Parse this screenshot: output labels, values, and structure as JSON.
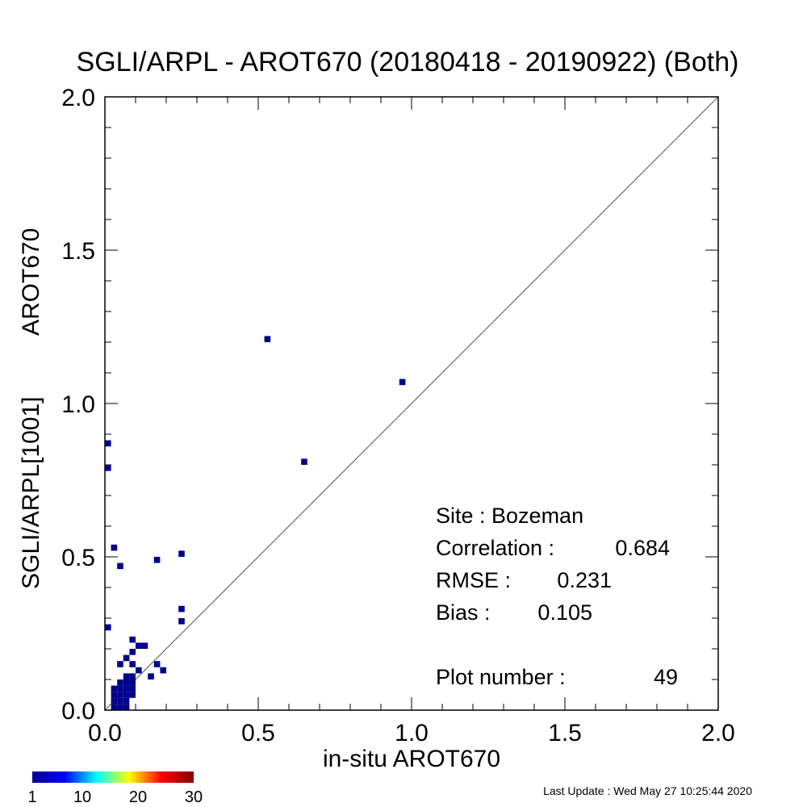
{
  "chart_data": {
    "type": "heatmap",
    "title": "SGLI/ARPL - AROT670 (20180418 - 20190922) (Both)",
    "xlabel": "in-situ AROT670",
    "ylabel_product": "SGLI/ARPL[1001]",
    "ylabel_param": "AROT670",
    "xlim": [
      0.0,
      2.0
    ],
    "ylim": [
      0.0,
      2.0
    ],
    "x_ticks": [
      "0.0",
      "0.5",
      "1.0",
      "1.5",
      "2.0"
    ],
    "y_ticks": [
      "0.0",
      "0.5",
      "1.0",
      "1.5",
      "2.0"
    ],
    "reference_line": "1:1",
    "bin_size": 0.02,
    "point_color": "#00008b",
    "points": [
      {
        "x": 0.52,
        "y": 1.2
      },
      {
        "x": 0.96,
        "y": 1.06
      },
      {
        "x": 0.64,
        "y": 0.8
      },
      {
        "x": 0.0,
        "y": 0.86
      },
      {
        "x": 0.0,
        "y": 0.78
      },
      {
        "x": 0.02,
        "y": 0.52
      },
      {
        "x": 0.04,
        "y": 0.46
      },
      {
        "x": 0.16,
        "y": 0.48
      },
      {
        "x": 0.24,
        "y": 0.5
      },
      {
        "x": 0.24,
        "y": 0.32
      },
      {
        "x": 0.24,
        "y": 0.28
      },
      {
        "x": 0.0,
        "y": 0.26
      },
      {
        "x": 0.08,
        "y": 0.22
      },
      {
        "x": 0.1,
        "y": 0.2
      },
      {
        "x": 0.12,
        "y": 0.2
      },
      {
        "x": 0.08,
        "y": 0.18
      },
      {
        "x": 0.06,
        "y": 0.16
      },
      {
        "x": 0.04,
        "y": 0.14
      },
      {
        "x": 0.08,
        "y": 0.14
      },
      {
        "x": 0.16,
        "y": 0.14
      },
      {
        "x": 0.1,
        "y": 0.12
      },
      {
        "x": 0.18,
        "y": 0.12
      },
      {
        "x": 0.14,
        "y": 0.1
      },
      {
        "x": 0.06,
        "y": 0.1
      },
      {
        "x": 0.08,
        "y": 0.1
      },
      {
        "x": 0.04,
        "y": 0.08
      },
      {
        "x": 0.06,
        "y": 0.08
      },
      {
        "x": 0.08,
        "y": 0.08
      },
      {
        "x": 0.02,
        "y": 0.06
      },
      {
        "x": 0.04,
        "y": 0.06
      },
      {
        "x": 0.06,
        "y": 0.06
      },
      {
        "x": 0.08,
        "y": 0.06
      },
      {
        "x": 0.02,
        "y": 0.04
      },
      {
        "x": 0.04,
        "y": 0.04
      },
      {
        "x": 0.06,
        "y": 0.04
      },
      {
        "x": 0.08,
        "y": 0.04
      },
      {
        "x": 0.02,
        "y": 0.02
      },
      {
        "x": 0.04,
        "y": 0.02
      },
      {
        "x": 0.06,
        "y": 0.02
      },
      {
        "x": 0.02,
        "y": 0.0
      },
      {
        "x": 0.04,
        "y": 0.0
      },
      {
        "x": 0.06,
        "y": 0.0
      }
    ],
    "stats": {
      "site": "Site : Bozeman",
      "correlation_label": "Correlation :",
      "correlation_value": "0.684",
      "rmse_label": "RMSE :",
      "rmse_value": "0.231",
      "bias_label": "Bias :",
      "bias_value": "0.105",
      "plot_number_label": "Plot number :",
      "plot_number_value": "49"
    },
    "colorbar": {
      "labels": [
        "1",
        "10",
        "20",
        "30"
      ],
      "range": [
        1,
        30
      ],
      "colors": [
        "#00008f",
        "#0000ff",
        "#00ffff",
        "#ffff00",
        "#ff0000",
        "#800000"
      ]
    }
  },
  "footer": {
    "last_update": "Last Update : Wed May 27 10:25:44 2020"
  }
}
